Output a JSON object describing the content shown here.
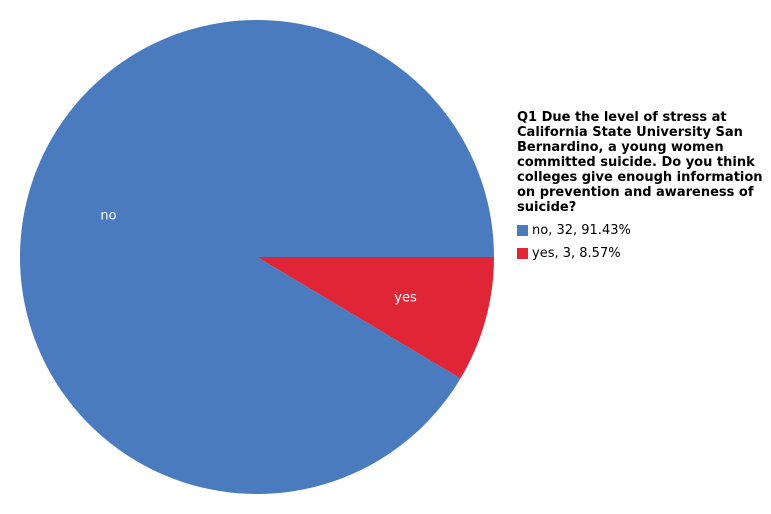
{
  "chart_data": {
    "type": "pie",
    "title": "Q1 Due the level of stress at California State University San Bernardino, a young women committed suicide. Do you think colleges give enough information on prevention and awareness of suicide?",
    "categories": [
      "no",
      "yes"
    ],
    "values": [
      32,
      3
    ],
    "colors": [
      "#4a7bbf",
      "#e02636"
    ],
    "legend_labels": [
      "no, 32, 91.43%",
      "yes, 3, 8.57%"
    ],
    "legend": "right"
  }
}
